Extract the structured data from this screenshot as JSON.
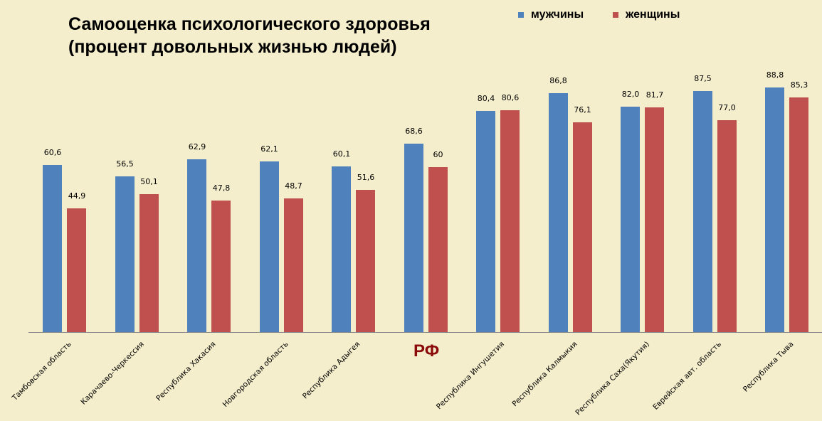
{
  "title_line1": "Самооценка психологического здоровья",
  "title_line2": "(процент довольных жизнью людей)",
  "legend": [
    {
      "label": "мужчины",
      "color": "#4f81bd"
    },
    {
      "label": "женщины",
      "color": "#c0504d"
    }
  ],
  "rf_label": "РФ",
  "chart_data": {
    "type": "bar",
    "title": "Самооценка психологического здоровья (процент довольных жизнью людей)",
    "xlabel": "",
    "ylabel": "",
    "grid": false,
    "legend_position": "top-right",
    "categories": [
      "Тамбовская область",
      "Карачаево-Черкессия",
      "Республика Хакасия",
      "Новгородская область",
      "Республика Адыгея",
      "РФ",
      "Республика Ингушетия",
      "Республика Калмыкия",
      "Республика Саха(Якутия)",
      "Еврейская авт. область",
      "Республика Тыва"
    ],
    "series": [
      {
        "name": "мужчины",
        "color": "#4f81bd",
        "values": [
          60.6,
          56.5,
          62.9,
          62.1,
          60.1,
          68.6,
          80.4,
          86.8,
          82.0,
          87.5,
          88.8
        ],
        "labels": [
          "60,6",
          "56,5",
          "62,9",
          "62,1",
          "60,1",
          "68,6",
          "80,4",
          "86,8",
          "82,0",
          "87,5",
          "88,8"
        ]
      },
      {
        "name": "женщины",
        "color": "#c0504d",
        "values": [
          44.9,
          50.1,
          47.8,
          48.7,
          51.6,
          60,
          80.6,
          76.1,
          81.7,
          77.0,
          85.3
        ],
        "labels": [
          "44,9",
          "50,1",
          "47,8",
          "48,7",
          "51,6",
          "60",
          "80,6",
          "76,1",
          "81,7",
          "77,0",
          "85,3"
        ]
      }
    ],
    "ylim": [
      0,
      100
    ]
  }
}
